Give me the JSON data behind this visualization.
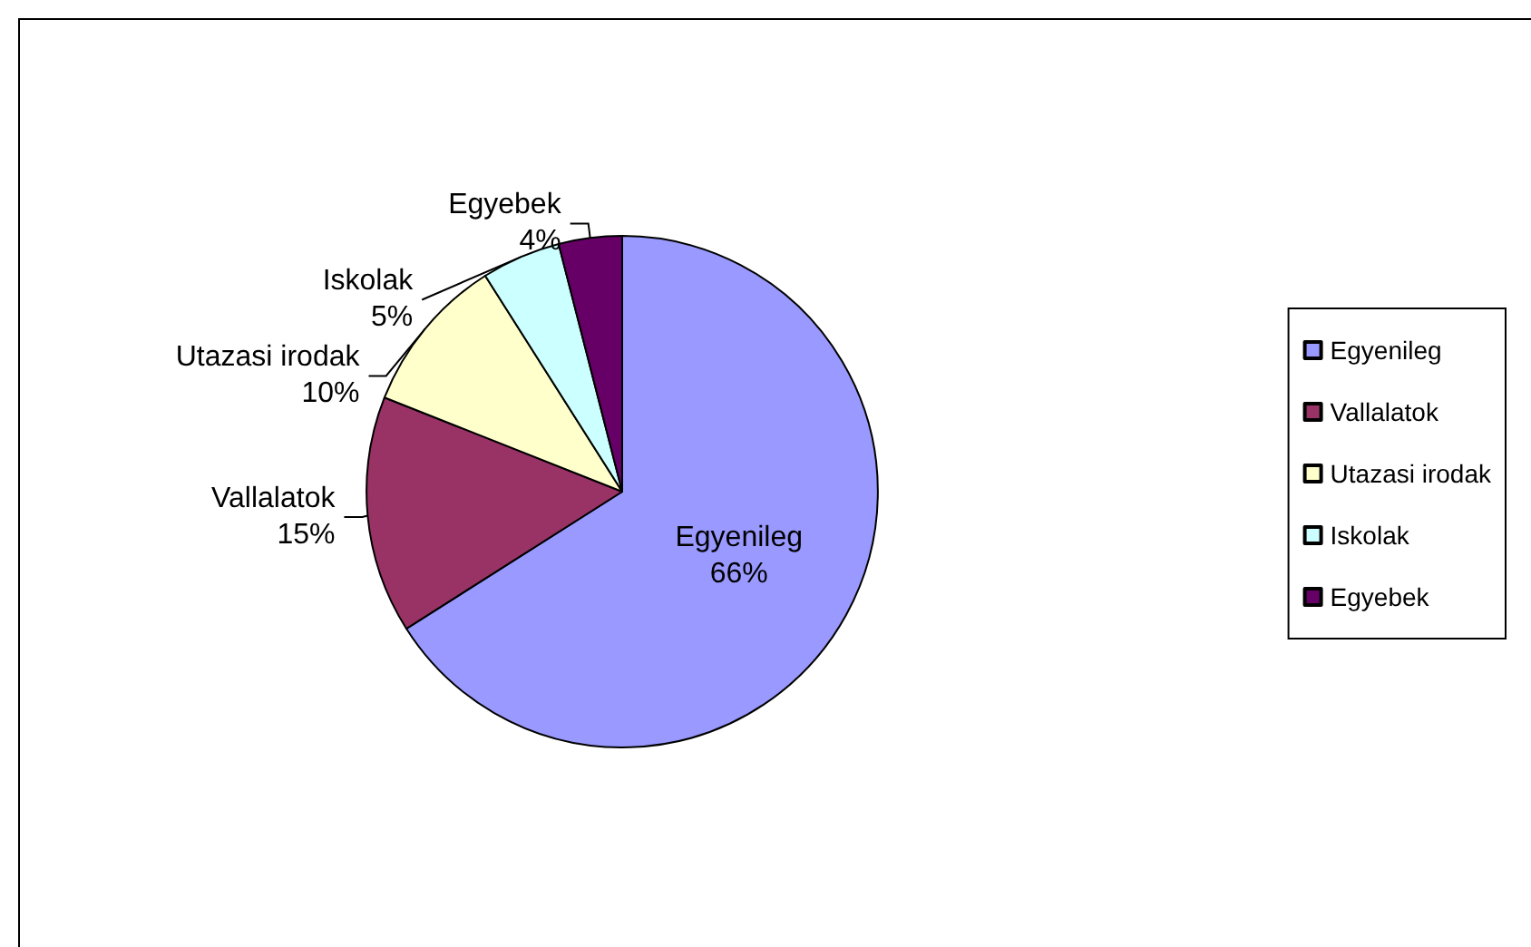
{
  "chart_data": {
    "type": "pie",
    "categories": [
      "Egyenileg",
      "Vallalatok",
      "Utazasi irodak",
      "Iskolak",
      "Egyebek"
    ],
    "values": [
      66,
      15,
      10,
      5,
      4
    ],
    "colors": [
      "#9999ff",
      "#993366",
      "#ffffcc",
      "#ccffff",
      "#660066"
    ],
    "value_labels": [
      "66%",
      "15%",
      "10%",
      "5%",
      "4%"
    ],
    "legend": "right"
  }
}
